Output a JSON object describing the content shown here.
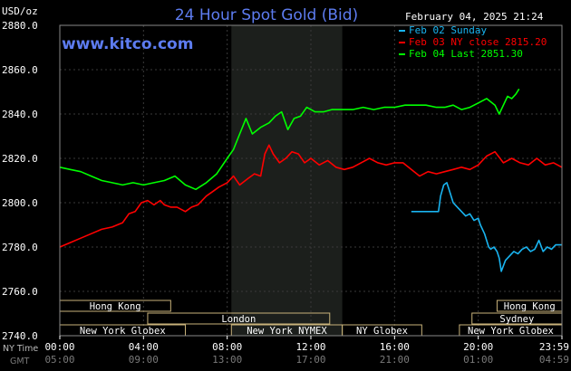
{
  "header": {
    "unit": "USD/oz",
    "title": "24 Hour Spot Gold (Bid)",
    "date": "February 04, 2025 21:24",
    "website": "www.kitco.com"
  },
  "chart_data": {
    "type": "line",
    "title": "24 Hour Spot Gold (Bid)",
    "ylabel": "USD/oz",
    "ylim": [
      2740,
      2880
    ],
    "yticks": [
      "2880.0",
      "2860.0",
      "2840.0",
      "2820.0",
      "2800.0",
      "2780.0",
      "2760.0",
      "2740.0"
    ],
    "ytick_values": [
      2880,
      2860,
      2840,
      2820,
      2800,
      2780,
      2760,
      2740
    ],
    "xlim": [
      0,
      24
    ],
    "xtick_values": [
      0,
      4,
      8,
      12,
      16,
      20,
      24
    ],
    "xtick_label_ny": [
      "00:00",
      "04:00",
      "08:00",
      "12:00",
      "16:00",
      "20:00",
      "23:59"
    ],
    "xtick_label_gmt": [
      "05:00",
      "09:00",
      "13:00",
      "17:00",
      "21:00",
      "01:00",
      "04:59"
    ],
    "x_axis_row_labels": {
      "ny": "NY Time",
      "gmt": "GMT"
    },
    "grid": true,
    "legend_position": "top-right",
    "shaded_session": [
      8.2,
      13.5
    ],
    "series": [
      {
        "name": "Feb 02 Sunday",
        "color": "#19b4f0",
        "x": [
          16.8,
          18.0,
          18.1,
          18.2,
          18.35,
          18.5,
          18.6,
          18.8,
          19.0,
          19.2,
          19.4,
          19.6,
          19.8,
          20.0,
          20.1,
          20.3,
          20.5,
          20.6,
          20.75,
          20.9,
          21.0,
          21.1,
          21.3,
          21.5,
          21.7,
          21.9,
          22.1,
          22.3,
          22.5,
          22.7,
          22.8,
          22.9,
          23.1,
          23.3,
          23.5,
          23.7,
          23.99
        ],
        "y": [
          2796,
          2796,
          2796,
          2803,
          2808,
          2809,
          2806,
          2800,
          2798,
          2796,
          2794,
          2795,
          2792,
          2793,
          2790,
          2786,
          2780,
          2779,
          2780,
          2778,
          2775,
          2769,
          2774,
          2776,
          2778,
          2777,
          2779,
          2780,
          2778,
          2779,
          2781,
          2783,
          2778,
          2780,
          2779,
          2781,
          2781
        ]
      },
      {
        "name": "Feb 03 NY close 2815.20",
        "color": "#ff0000",
        "x": [
          0,
          0.5,
          1.0,
          1.5,
          2.0,
          2.5,
          3.0,
          3.3,
          3.6,
          3.9,
          4.2,
          4.5,
          4.8,
          5.0,
          5.3,
          5.6,
          6.0,
          6.3,
          6.6,
          7.0,
          7.3,
          7.6,
          8.0,
          8.3,
          8.6,
          9.0,
          9.3,
          9.6,
          9.8,
          10.0,
          10.2,
          10.5,
          10.8,
          11.1,
          11.4,
          11.7,
          12.0,
          12.4,
          12.8,
          13.2,
          13.6,
          14.0,
          14.4,
          14.8,
          15.2,
          15.6,
          16.0,
          16.4,
          16.8,
          17.2,
          17.6,
          18.0,
          18.4,
          18.8,
          19.2,
          19.6,
          20.0,
          20.4,
          20.8,
          21.2,
          21.6,
          22.0,
          22.4,
          22.8,
          23.2,
          23.6,
          23.99
        ],
        "y": [
          2780,
          2782,
          2784,
          2786,
          2788,
          2789,
          2791,
          2795,
          2796,
          2800,
          2801,
          2799,
          2801,
          2799,
          2798,
          2798,
          2796,
          2798,
          2799,
          2803,
          2805,
          2807,
          2809,
          2812,
          2808,
          2811,
          2813,
          2812,
          2822,
          2826,
          2822,
          2818,
          2820,
          2823,
          2822,
          2818,
          2820,
          2817,
          2819,
          2816,
          2815,
          2816,
          2818,
          2820,
          2818,
          2817,
          2818,
          2818,
          2815,
          2812,
          2814,
          2813,
          2814,
          2815,
          2816,
          2815,
          2817,
          2821,
          2823,
          2818,
          2820,
          2818,
          2817,
          2820,
          2817,
          2818,
          2816
        ]
      },
      {
        "name": "Feb 04 Last 2851.30",
        "color": "#00ff00",
        "x": [
          0,
          0.5,
          1.0,
          1.5,
          2.0,
          2.5,
          3.0,
          3.5,
          4.0,
          4.5,
          5.0,
          5.5,
          6.0,
          6.5,
          7.0,
          7.5,
          8.0,
          8.3,
          8.6,
          8.9,
          9.2,
          9.6,
          10.0,
          10.3,
          10.6,
          10.9,
          11.2,
          11.5,
          11.8,
          12.2,
          12.6,
          13.0,
          13.5,
          14.0,
          14.5,
          15.0,
          15.5,
          16.0,
          16.5,
          17.0,
          17.5,
          18.0,
          18.4,
          18.8,
          19.2,
          19.6,
          20.0,
          20.4,
          20.8,
          21.0,
          21.2,
          21.4,
          21.6,
          21.8,
          21.95
        ],
        "y": [
          2816,
          2815,
          2814,
          2812,
          2810,
          2809,
          2808,
          2809,
          2808,
          2809,
          2810,
          2812,
          2808,
          2806,
          2809,
          2813,
          2820,
          2824,
          2831,
          2838,
          2831,
          2834,
          2836,
          2839,
          2841,
          2833,
          2838,
          2839,
          2843,
          2841,
          2841,
          2842,
          2842,
          2842,
          2843,
          2842,
          2843,
          2843,
          2844,
          2844,
          2844,
          2843,
          2843,
          2844,
          2842,
          2843,
          2845,
          2847,
          2844,
          2840,
          2844,
          2848,
          2847,
          2849,
          2851.3
        ]
      }
    ],
    "sessions": [
      {
        "label": "Hong Kong",
        "row": 0,
        "start": 0,
        "end": 5.3
      },
      {
        "label": "Hong Kong",
        "row": 0,
        "start": 20.9,
        "end": 24.3
      },
      {
        "label": "London",
        "row": 1,
        "start": 4.2,
        "end": 12.9
      },
      {
        "label": "Sydney",
        "row": 1,
        "start": 19.7,
        "end": 24.3
      },
      {
        "label": "New York Globex",
        "row": 2,
        "start": 0,
        "end": 6.0
      },
      {
        "label": "New York NYMEX",
        "row": 2,
        "start": 8.2,
        "end": 13.5
      },
      {
        "label": "NY Globex",
        "row": 2,
        "start": 13.5,
        "end": 17.3
      },
      {
        "label": "New York Globex",
        "row": 2,
        "start": 19.1,
        "end": 24.3
      }
    ]
  }
}
